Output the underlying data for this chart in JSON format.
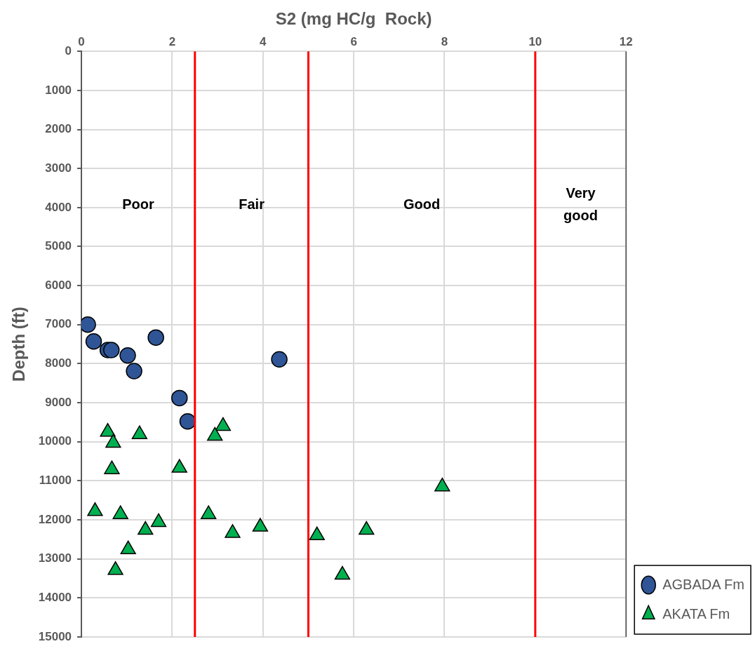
{
  "chart_data": {
    "type": "scatter",
    "xlabel": "S2 (mg HC/g  Rock)",
    "ylabel": "Depth (ft)",
    "xlim": [
      0,
      12
    ],
    "xticks": [
      0,
      2,
      4,
      6,
      8,
      10,
      12
    ],
    "ylim": [
      15000,
      0
    ],
    "yticks": [
      0,
      1000,
      2000,
      3000,
      4000,
      5000,
      6000,
      7000,
      8000,
      9000,
      10000,
      11000,
      12000,
      13000,
      14000,
      15000
    ],
    "grid": true,
    "legend": "bottom right",
    "series": [
      {
        "name": "AGBADA Fm",
        "color": "#2f5597",
        "marker": "circle",
        "x": [
          0.14,
          0.27,
          0.58,
          0.66,
          1.02,
          1.64,
          1.16,
          4.36,
          2.16,
          2.34
        ],
        "values": [
          7000,
          7430,
          7650,
          7650,
          7790,
          7330,
          8190,
          7890,
          8880,
          9480
        ]
      },
      {
        "name": "AKATA Fm",
        "color": "#00b050",
        "marker": "triangle",
        "x": [
          0.58,
          0.7,
          1.28,
          3.12,
          2.94,
          0.67,
          2.16,
          7.95,
          0.3,
          0.86,
          1.7,
          1.41,
          2.8,
          3.33,
          3.94,
          5.19,
          6.28,
          1.03,
          0.75,
          5.75
        ],
        "values": [
          9750,
          10030,
          9810,
          9600,
          9850,
          10710,
          10670,
          11150,
          11780,
          11860,
          12060,
          12260,
          11860,
          12340,
          12180,
          12400,
          12260,
          12760,
          13290,
          13410
        ]
      }
    ],
    "ref_lines": [
      {
        "axis": "x",
        "value": 2.5,
        "color": "#ff0000"
      },
      {
        "axis": "x",
        "value": 5,
        "color": "#ff0000"
      },
      {
        "axis": "x",
        "value": 10,
        "color": "#ff0000"
      }
    ],
    "annotations": [
      "Poor",
      "Fair",
      "Good",
      "Very good"
    ]
  }
}
